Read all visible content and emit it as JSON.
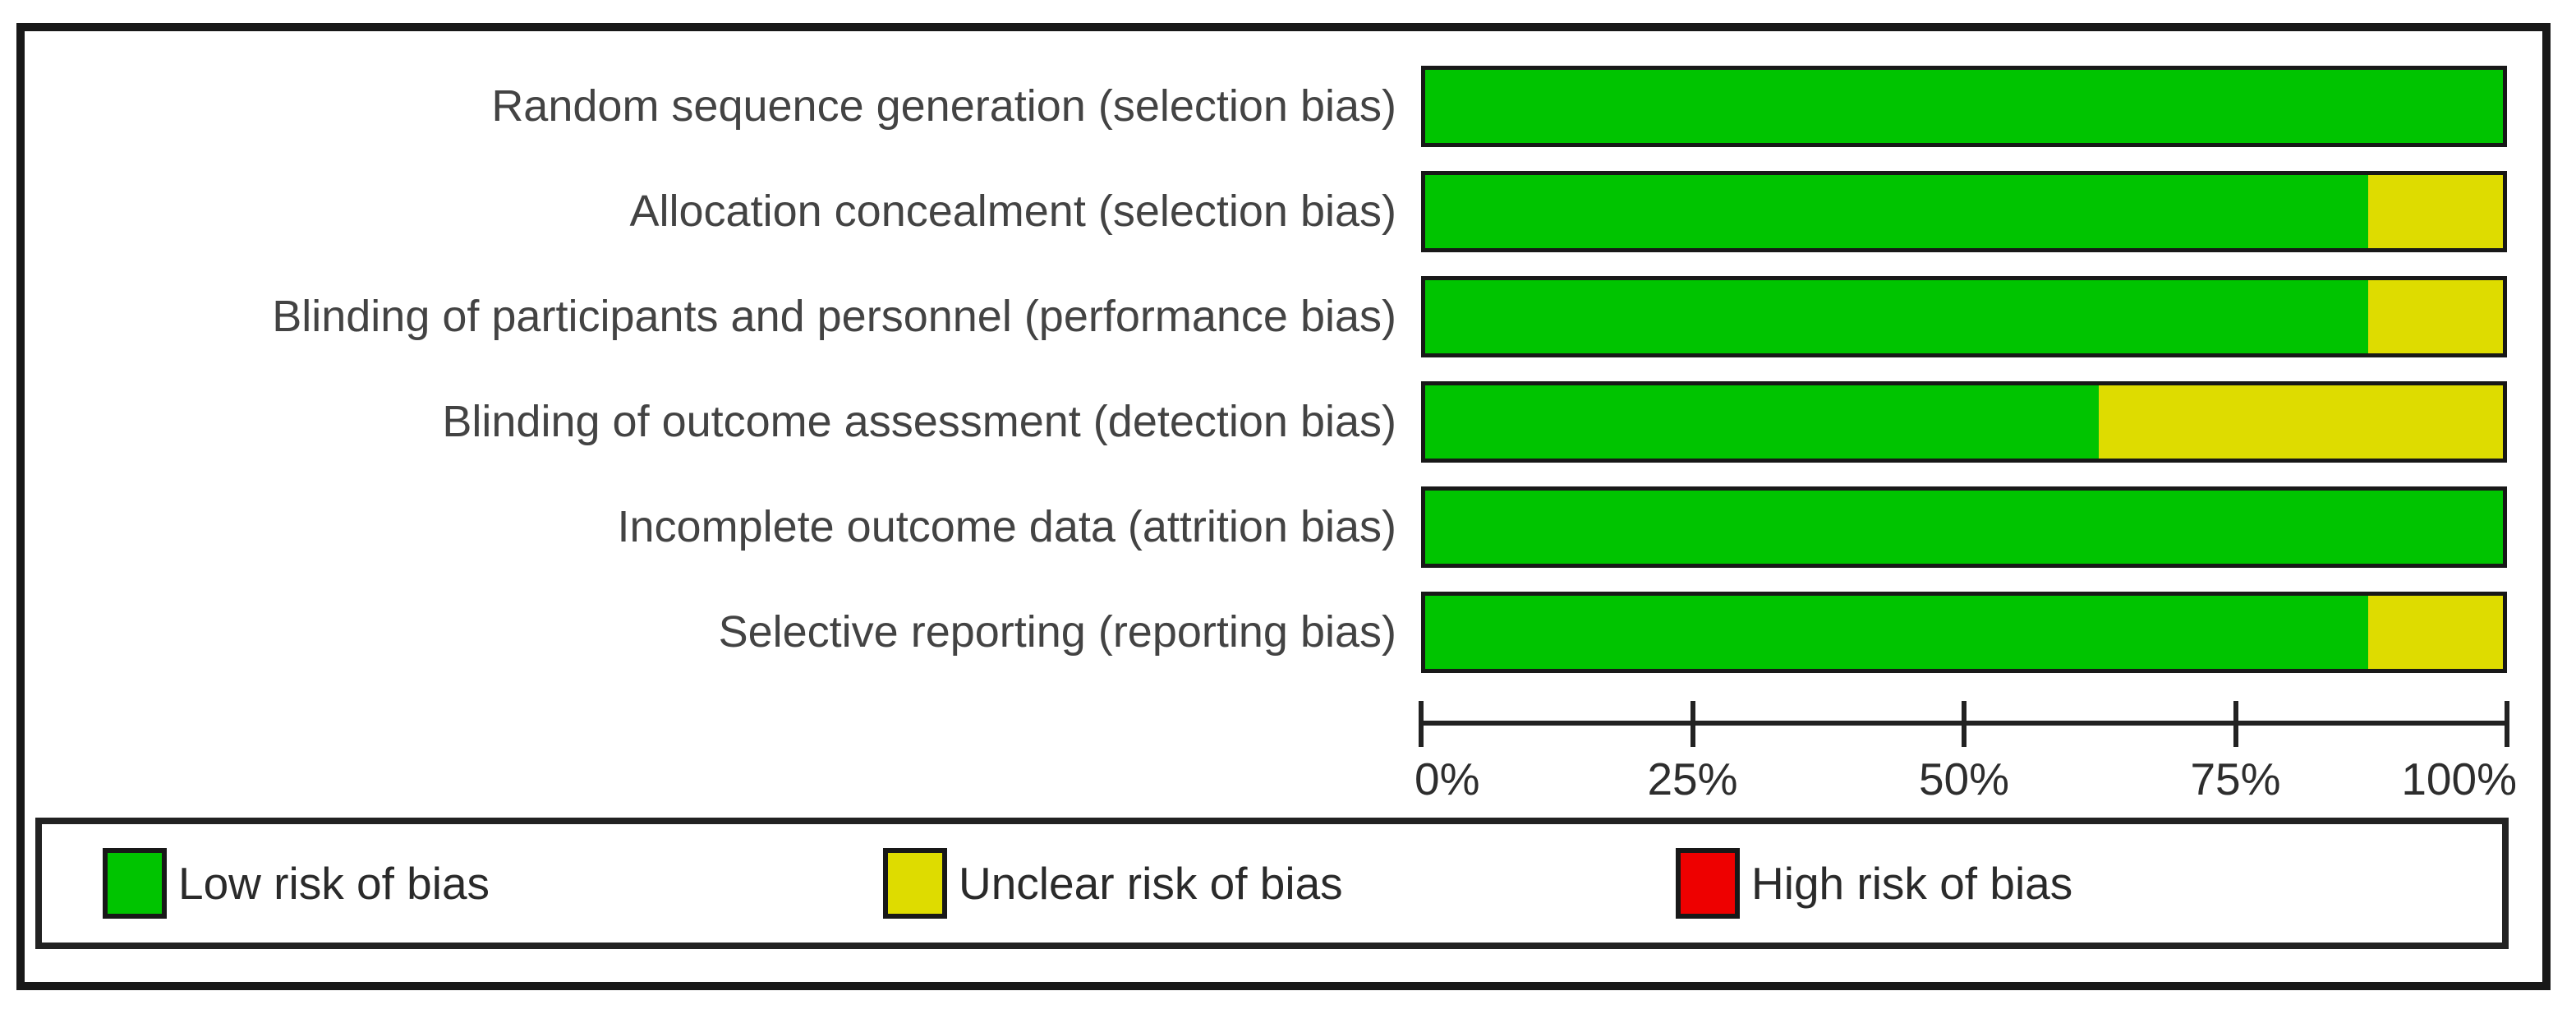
{
  "chart_data": {
    "type": "bar",
    "stacked": true,
    "orientation": "horizontal",
    "categories": [
      "Random sequence generation (selection bias)",
      "Allocation concealment (selection bias)",
      "Blinding of participants and personnel (performance bias)",
      "Blinding of outcome assessment (detection bias)",
      "Incomplete outcome data (attrition bias)",
      "Selective reporting (reporting bias)"
    ],
    "series": [
      {
        "name": "Low risk of bias",
        "color": "#00c400",
        "values": [
          100,
          87.5,
          87.5,
          62.5,
          100,
          87.5
        ]
      },
      {
        "name": "Unclear risk of bias",
        "color": "#dedc00",
        "values": [
          0,
          12.5,
          12.5,
          37.5,
          0,
          12.5
        ]
      },
      {
        "name": "High risk of bias",
        "color": "#ee0000",
        "values": [
          0,
          0,
          0,
          0,
          0,
          0
        ]
      }
    ],
    "x_ticks": [
      {
        "value": 0,
        "label": "0%"
      },
      {
        "value": 25,
        "label": "25%"
      },
      {
        "value": 50,
        "label": "50%"
      },
      {
        "value": 75,
        "label": "75%"
      },
      {
        "value": 100,
        "label": "100%"
      }
    ],
    "xlim": [
      0,
      100
    ],
    "grid": false,
    "legend_position": "bottom"
  },
  "legend": {
    "items": [
      {
        "label": "Low risk of bias",
        "color": "#00c400"
      },
      {
        "label": "Unclear risk of bias",
        "color": "#dedc00"
      },
      {
        "label": "High risk of bias",
        "color": "#ee0000"
      }
    ]
  }
}
